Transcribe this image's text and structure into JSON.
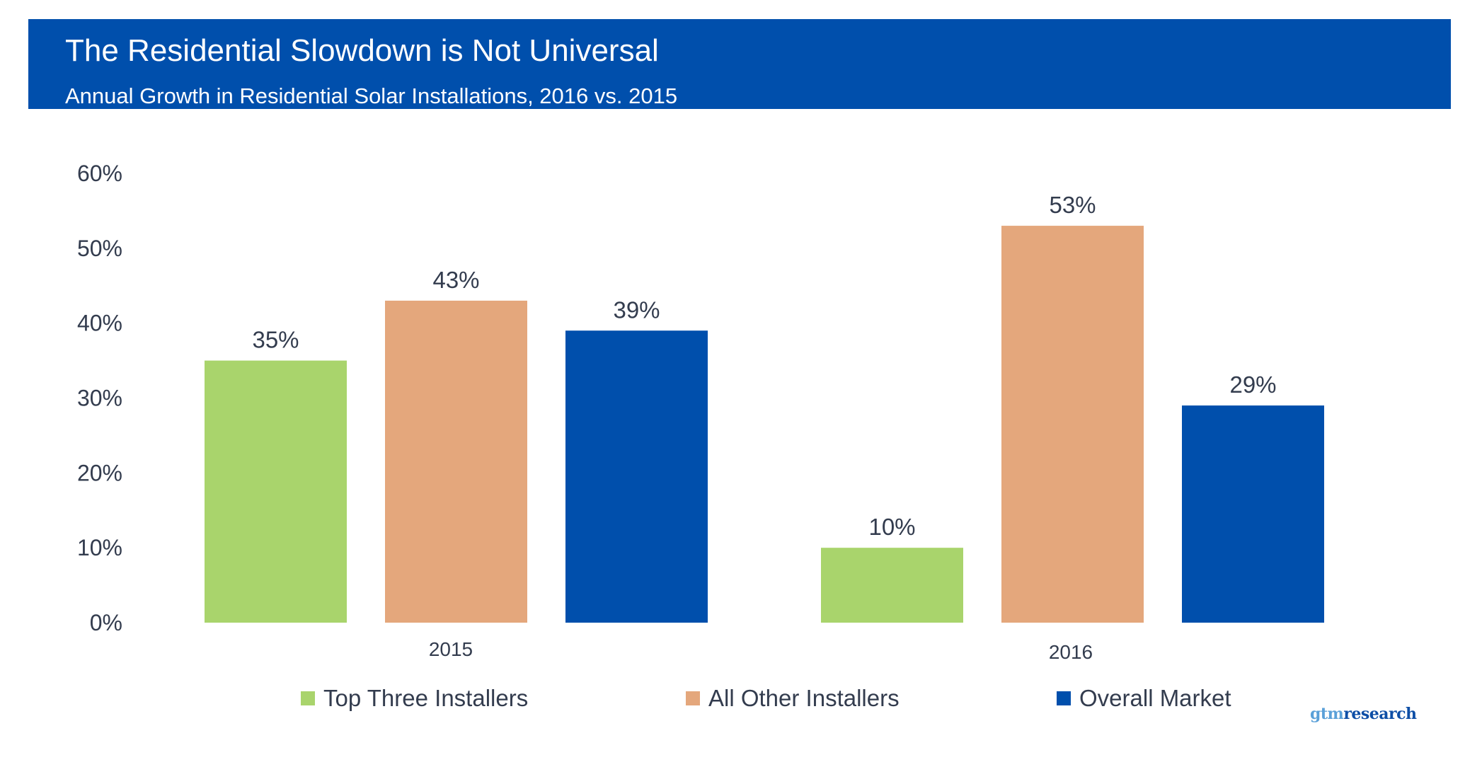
{
  "header": {
    "title": "The Residential Slowdown is Not Universal",
    "subtitle": "Annual Growth in Residential Solar Installations, 2016 vs. 2015"
  },
  "chart_data": {
    "type": "bar",
    "categories": [
      "2015",
      "2016"
    ],
    "series": [
      {
        "name": "Top Three Installers",
        "color": "#a9d46c",
        "values": [
          35,
          10
        ],
        "labels": [
          "35%",
          "10%"
        ]
      },
      {
        "name": "All Other Installers",
        "color": "#e4a77c",
        "values": [
          43,
          53
        ],
        "labels": [
          "43%",
          "53%"
        ]
      },
      {
        "name": "Overall Market",
        "color": "#004fac",
        "values": [
          39,
          29
        ],
        "labels": [
          "39%",
          "29%"
        ]
      }
    ],
    "ylim": [
      0,
      60
    ],
    "yticks": [
      "0%",
      "10%",
      "20%",
      "30%",
      "40%",
      "50%",
      "60%"
    ],
    "grid": false,
    "legend": "bottom"
  },
  "logo": {
    "part1": "gtm",
    "part2": "research"
  }
}
